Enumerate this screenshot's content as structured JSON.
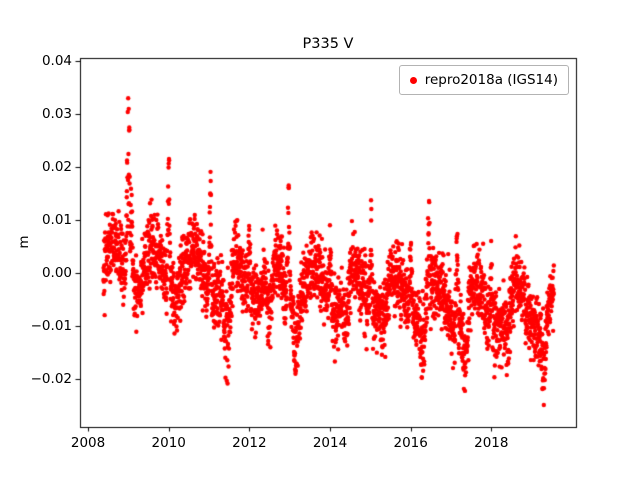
{
  "chart_data": {
    "type": "scatter",
    "title": "P335 V",
    "xlabel": "",
    "ylabel": "m",
    "xlim": [
      2007.8,
      2020.1
    ],
    "ylim": [
      -0.029,
      0.0405
    ],
    "grid": false,
    "xticks": [
      {
        "v": 2008,
        "label": "2008"
      },
      {
        "v": 2010,
        "label": "2010"
      },
      {
        "v": 2012,
        "label": "2012"
      },
      {
        "v": 2014,
        "label": "2014"
      },
      {
        "v": 2016,
        "label": "2016"
      },
      {
        "v": 2018,
        "label": "2018"
      }
    ],
    "yticks": [
      {
        "v": -0.02,
        "label": "−0.02"
      },
      {
        "v": -0.01,
        "label": "−0.01"
      },
      {
        "v": 0.0,
        "label": "0.00"
      },
      {
        "v": 0.01,
        "label": "0.01"
      },
      {
        "v": 0.02,
        "label": "0.02"
      },
      {
        "v": 0.03,
        "label": "0.03"
      },
      {
        "v": 0.04,
        "label": "0.04"
      }
    ],
    "legend": {
      "label": "repro2018a (IGS14)",
      "location": "upper right",
      "marker_color": "#ff0000"
    },
    "marker": {
      "color": "#ff0000",
      "radius_px": 2.2
    },
    "series": [
      {
        "name": "repro2018a (IGS14)",
        "color": "#ff0000",
        "description": "Daily GPS station vertical position residuals, mid-2008 to mid-2019; slight downward trend from ~0.001 m to ~-0.007 m, annual seasonal oscillation ~±0.004 m, scatter ~±0.006 m, positive winter spikes (max 0.0375 m in early 2009, 0.023 m in 2010, ~0.017 m in 2011/2013/2017) and negative spring dips (min ~-0.026 m in mid-2011, ~-0.025 m in 2017, ~-0.024 m in 2019)",
        "generator": {
          "seed": 42,
          "t_start": 2008.38,
          "t_end": 2019.55,
          "n_points": 3200,
          "trend_start": 0.0015,
          "trend_per_year": -0.00078,
          "seasonal_amplitude": 0.0042,
          "seasonal_phase": 0.37,
          "noise_sd": 0.0032,
          "events": [
            {
              "t": 2009.0,
              "amp": 0.04,
              "width": 0.03
            },
            {
              "t": 2009.08,
              "amp": 0.02,
              "width": 0.02
            },
            {
              "t": 2010.0,
              "amp": 0.027,
              "width": 0.02
            },
            {
              "t": 2011.03,
              "amp": 0.022,
              "width": 0.02
            },
            {
              "t": 2012.0,
              "amp": 0.016,
              "width": 0.02
            },
            {
              "t": 2012.97,
              "amp": 0.023,
              "width": 0.02
            },
            {
              "t": 2014.0,
              "amp": 0.012,
              "width": 0.02
            },
            {
              "t": 2015.02,
              "amp": 0.016,
              "width": 0.02
            },
            {
              "t": 2016.0,
              "amp": 0.016,
              "width": 0.02
            },
            {
              "t": 2016.45,
              "amp": 0.017,
              "width": 0.015
            },
            {
              "t": 2017.15,
              "amp": 0.022,
              "width": 0.02
            },
            {
              "t": 2018.0,
              "amp": 0.012,
              "width": 0.02
            },
            {
              "t": 2011.45,
              "amp": -0.022,
              "width": 0.07
            },
            {
              "t": 2012.5,
              "amp": -0.014,
              "width": 0.05
            },
            {
              "t": 2013.15,
              "amp": -0.013,
              "width": 0.05
            },
            {
              "t": 2014.4,
              "amp": -0.01,
              "width": 0.05
            },
            {
              "t": 2015.35,
              "amp": -0.008,
              "width": 0.05
            },
            {
              "t": 2016.3,
              "amp": -0.01,
              "width": 0.05
            },
            {
              "t": 2017.35,
              "amp": -0.014,
              "width": 0.05
            },
            {
              "t": 2018.4,
              "amp": -0.01,
              "width": 0.05
            },
            {
              "t": 2019.3,
              "amp": -0.012,
              "width": 0.05
            }
          ]
        }
      }
    ]
  }
}
